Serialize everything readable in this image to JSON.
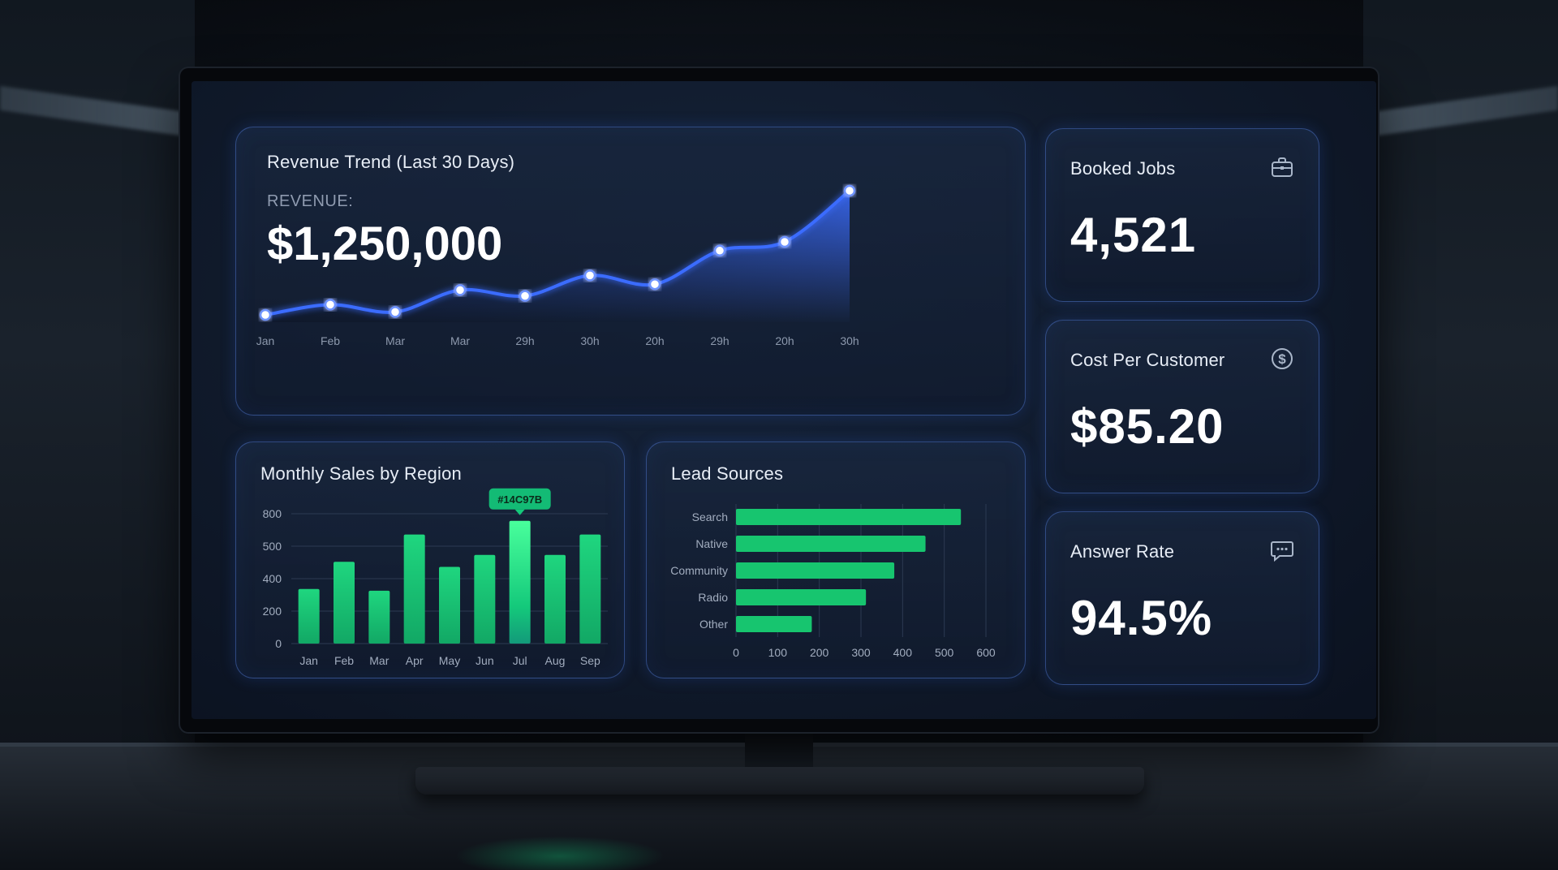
{
  "revenue_card": {
    "title": "Revenue Trend (Last 30 Days)",
    "label": "REVENUE:",
    "value": "$1,250,000"
  },
  "kpis": [
    {
      "title": "Booked Jobs",
      "value": "4,521",
      "icon": "briefcase-icon"
    },
    {
      "title": "Cost Per Customer",
      "value": "$85.20",
      "icon": "dollar-circle-icon"
    },
    {
      "title": "Answer Rate",
      "value": "94.5%",
      "icon": "chat-bubble-icon"
    }
  ],
  "monthly_card": {
    "title": "Monthly Sales by Region"
  },
  "lead_card": {
    "title": "Lead Sources"
  },
  "colors": {
    "accent_blue": "#3b6cff",
    "accent_green": "#14C97B",
    "panel_border": "#4870c4"
  },
  "chart_data": [
    {
      "type": "area",
      "categories": [
        "Jan",
        "Feb",
        "Mar",
        "Mar",
        "29h",
        "30h",
        "20h",
        "29h",
        "20h",
        "30h"
      ],
      "series": [
        {
          "values": [
            5,
            12,
            7,
            22,
            18,
            32,
            26,
            49,
            55,
            90
          ]
        }
      ],
      "ylim": [
        0,
        100
      ],
      "grid": false
    },
    {
      "type": "bar",
      "categories": [
        "Jan",
        "Feb",
        "Mar",
        "Apr",
        "May",
        "Jun",
        "Jul",
        "Aug",
        "Sep"
      ],
      "values": [
        320,
        480,
        310,
        640,
        450,
        520,
        720,
        520,
        640
      ],
      "yticks": [
        "0",
        "200",
        "400",
        "500",
        "800"
      ],
      "ylim": [
        0,
        800
      ],
      "highlight": {
        "category": "Jul",
        "label": "#14C97B"
      },
      "grid": true
    },
    {
      "type": "bar",
      "orientation": "horizontal",
      "categories": [
        "Search",
        "Native",
        "Community",
        "Radio",
        "Other"
      ],
      "values": [
        540,
        455,
        380,
        312,
        182
      ],
      "xticks": [
        0,
        100,
        200,
        300,
        400,
        500,
        600
      ],
      "xlim": [
        0,
        600
      ],
      "grid": true
    }
  ]
}
